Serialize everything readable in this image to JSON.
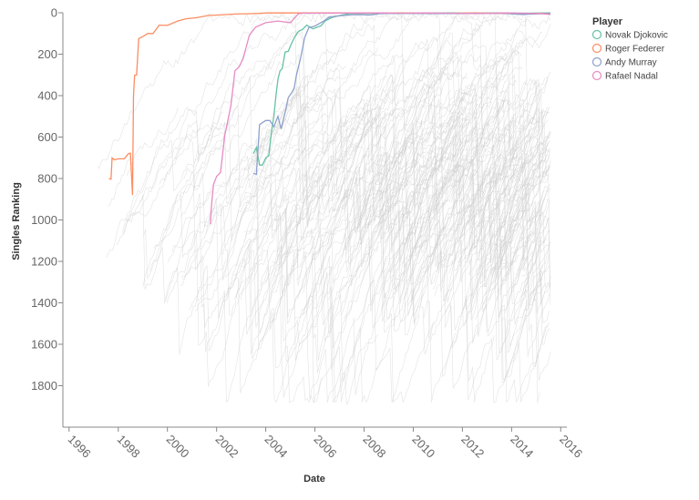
{
  "chart_data": {
    "type": "line",
    "title": "",
    "xlabel": "Date",
    "ylabel": "Singles Ranking",
    "xlim": [
      "1995-10-01",
      "2016-04-01"
    ],
    "ylim": [
      0,
      2000
    ],
    "y_reversed": true,
    "x_ticks": [
      "1996",
      "1998",
      "2000",
      "2002",
      "2004",
      "2006",
      "2008",
      "2010",
      "2012",
      "2014",
      "2016"
    ],
    "y_ticks": [
      0,
      200,
      400,
      600,
      800,
      1000,
      1200,
      1400,
      1600,
      1800
    ],
    "grid": false,
    "legend": {
      "title": "Player",
      "position": "top-right"
    },
    "background_series_color": "#cccccc",
    "series": [
      {
        "name": "Novak Djokovic",
        "color": "#66c2a5",
        "points": [
          [
            "2003-07-01",
            680
          ],
          [
            "2003-08-15",
            650
          ],
          [
            "2003-10-01",
            735
          ],
          [
            "2003-11-15",
            735
          ],
          [
            "2004-01-01",
            700
          ],
          [
            "2004-02-15",
            690
          ],
          [
            "2004-04-01",
            560
          ],
          [
            "2004-05-01",
            500
          ],
          [
            "2004-06-01",
            400
          ],
          [
            "2004-07-01",
            320
          ],
          [
            "2004-08-01",
            280
          ],
          [
            "2004-09-01",
            270
          ],
          [
            "2004-10-15",
            190
          ],
          [
            "2004-12-01",
            186
          ],
          [
            "2005-01-15",
            150
          ],
          [
            "2005-03-01",
            120
          ],
          [
            "2005-05-01",
            90
          ],
          [
            "2005-07-01",
            80
          ],
          [
            "2005-09-01",
            60
          ],
          [
            "2005-12-01",
            78
          ],
          [
            "2006-04-01",
            63
          ],
          [
            "2006-06-01",
            40
          ],
          [
            "2006-09-01",
            24
          ],
          [
            "2006-12-01",
            16
          ],
          [
            "2007-03-01",
            10
          ],
          [
            "2007-06-01",
            4
          ],
          [
            "2007-09-01",
            3
          ],
          [
            "2008-06-01",
            3
          ],
          [
            "2009-06-01",
            3
          ],
          [
            "2010-06-01",
            2
          ],
          [
            "2011-07-01",
            1
          ],
          [
            "2012-06-01",
            2
          ],
          [
            "2013-06-01",
            1
          ],
          [
            "2014-06-01",
            2
          ],
          [
            "2015-08-01",
            1
          ]
        ]
      },
      {
        "name": "Roger Federer",
        "color": "#fc8d62",
        "points": [
          [
            "1997-08-15",
            800
          ],
          [
            "1997-09-15",
            803
          ],
          [
            "1997-10-01",
            700
          ],
          [
            "1997-11-01",
            710
          ],
          [
            "1998-01-01",
            705
          ],
          [
            "1998-04-01",
            705
          ],
          [
            "1998-06-01",
            680
          ],
          [
            "1998-07-01",
            678
          ],
          [
            "1998-08-01",
            880
          ],
          [
            "1998-08-15",
            400
          ],
          [
            "1998-09-01",
            302
          ],
          [
            "1998-10-01",
            300
          ],
          [
            "1998-11-01",
            125
          ],
          [
            "1999-01-01",
            115
          ],
          [
            "1999-03-15",
            100
          ],
          [
            "1999-06-01",
            100
          ],
          [
            "1999-09-01",
            60
          ],
          [
            "2000-01-01",
            61
          ],
          [
            "2000-06-01",
            40
          ],
          [
            "2000-10-01",
            29
          ],
          [
            "2001-03-01",
            24
          ],
          [
            "2001-09-01",
            13
          ],
          [
            "2002-06-01",
            9
          ],
          [
            "2002-10-01",
            6
          ],
          [
            "2003-04-01",
            5
          ],
          [
            "2003-10-01",
            3
          ],
          [
            "2004-02-01",
            1
          ],
          [
            "2008-08-15",
            1
          ],
          [
            "2008-09-15",
            2
          ],
          [
            "2009-07-01",
            1
          ],
          [
            "2010-06-01",
            2
          ],
          [
            "2011-06-01",
            3
          ],
          [
            "2012-07-01",
            1
          ],
          [
            "2013-06-01",
            3
          ],
          [
            "2014-06-01",
            4
          ],
          [
            "2015-08-01",
            2
          ]
        ]
      },
      {
        "name": "Andy Murray",
        "color": "#8da0cb",
        "points": [
          [
            "2003-07-01",
            775
          ],
          [
            "2003-08-15",
            780
          ],
          [
            "2003-10-01",
            540
          ],
          [
            "2003-11-15",
            530
          ],
          [
            "2004-01-01",
            520
          ],
          [
            "2004-03-01",
            520
          ],
          [
            "2004-05-01",
            550
          ],
          [
            "2004-07-01",
            500
          ],
          [
            "2004-08-15",
            560
          ],
          [
            "2004-10-15",
            480
          ],
          [
            "2004-12-01",
            410
          ],
          [
            "2005-02-01",
            380
          ],
          [
            "2005-03-01",
            360
          ],
          [
            "2005-04-01",
            300
          ],
          [
            "2005-06-01",
            220
          ],
          [
            "2005-08-01",
            120
          ],
          [
            "2005-10-01",
            72
          ],
          [
            "2006-01-01",
            64
          ],
          [
            "2006-05-01",
            42
          ],
          [
            "2006-08-01",
            21
          ],
          [
            "2006-11-01",
            17
          ],
          [
            "2007-05-01",
            11
          ],
          [
            "2007-10-01",
            9
          ],
          [
            "2008-04-01",
            11
          ],
          [
            "2008-09-01",
            4
          ],
          [
            "2009-06-01",
            2
          ],
          [
            "2010-06-01",
            4
          ],
          [
            "2011-06-01",
            4
          ],
          [
            "2012-10-01",
            3
          ],
          [
            "2013-08-01",
            2
          ],
          [
            "2014-06-01",
            8
          ],
          [
            "2015-08-01",
            3
          ]
        ]
      },
      {
        "name": "Rafael Nadal",
        "color": "#e78ac3",
        "points": [
          [
            "2001-10-01",
            1020
          ],
          [
            "2001-10-15",
            940
          ],
          [
            "2001-11-15",
            830
          ],
          [
            "2002-01-01",
            790
          ],
          [
            "2002-03-01",
            770
          ],
          [
            "2002-05-01",
            595
          ],
          [
            "2002-08-01",
            450
          ],
          [
            "2002-10-01",
            280
          ],
          [
            "2002-12-01",
            262
          ],
          [
            "2003-02-01",
            220
          ],
          [
            "2003-05-01",
            110
          ],
          [
            "2003-08-01",
            70
          ],
          [
            "2004-01-01",
            48
          ],
          [
            "2004-07-01",
            40
          ],
          [
            "2005-01-01",
            48
          ],
          [
            "2005-05-01",
            5
          ],
          [
            "2005-07-01",
            2
          ],
          [
            "2008-08-15",
            1
          ],
          [
            "2009-07-01",
            2
          ],
          [
            "2010-06-01",
            1
          ],
          [
            "2011-07-01",
            2
          ],
          [
            "2012-07-01",
            4
          ],
          [
            "2013-10-01",
            1
          ],
          [
            "2014-07-01",
            2
          ],
          [
            "2015-03-01",
            4
          ],
          [
            "2015-08-01",
            9
          ]
        ]
      }
    ]
  }
}
